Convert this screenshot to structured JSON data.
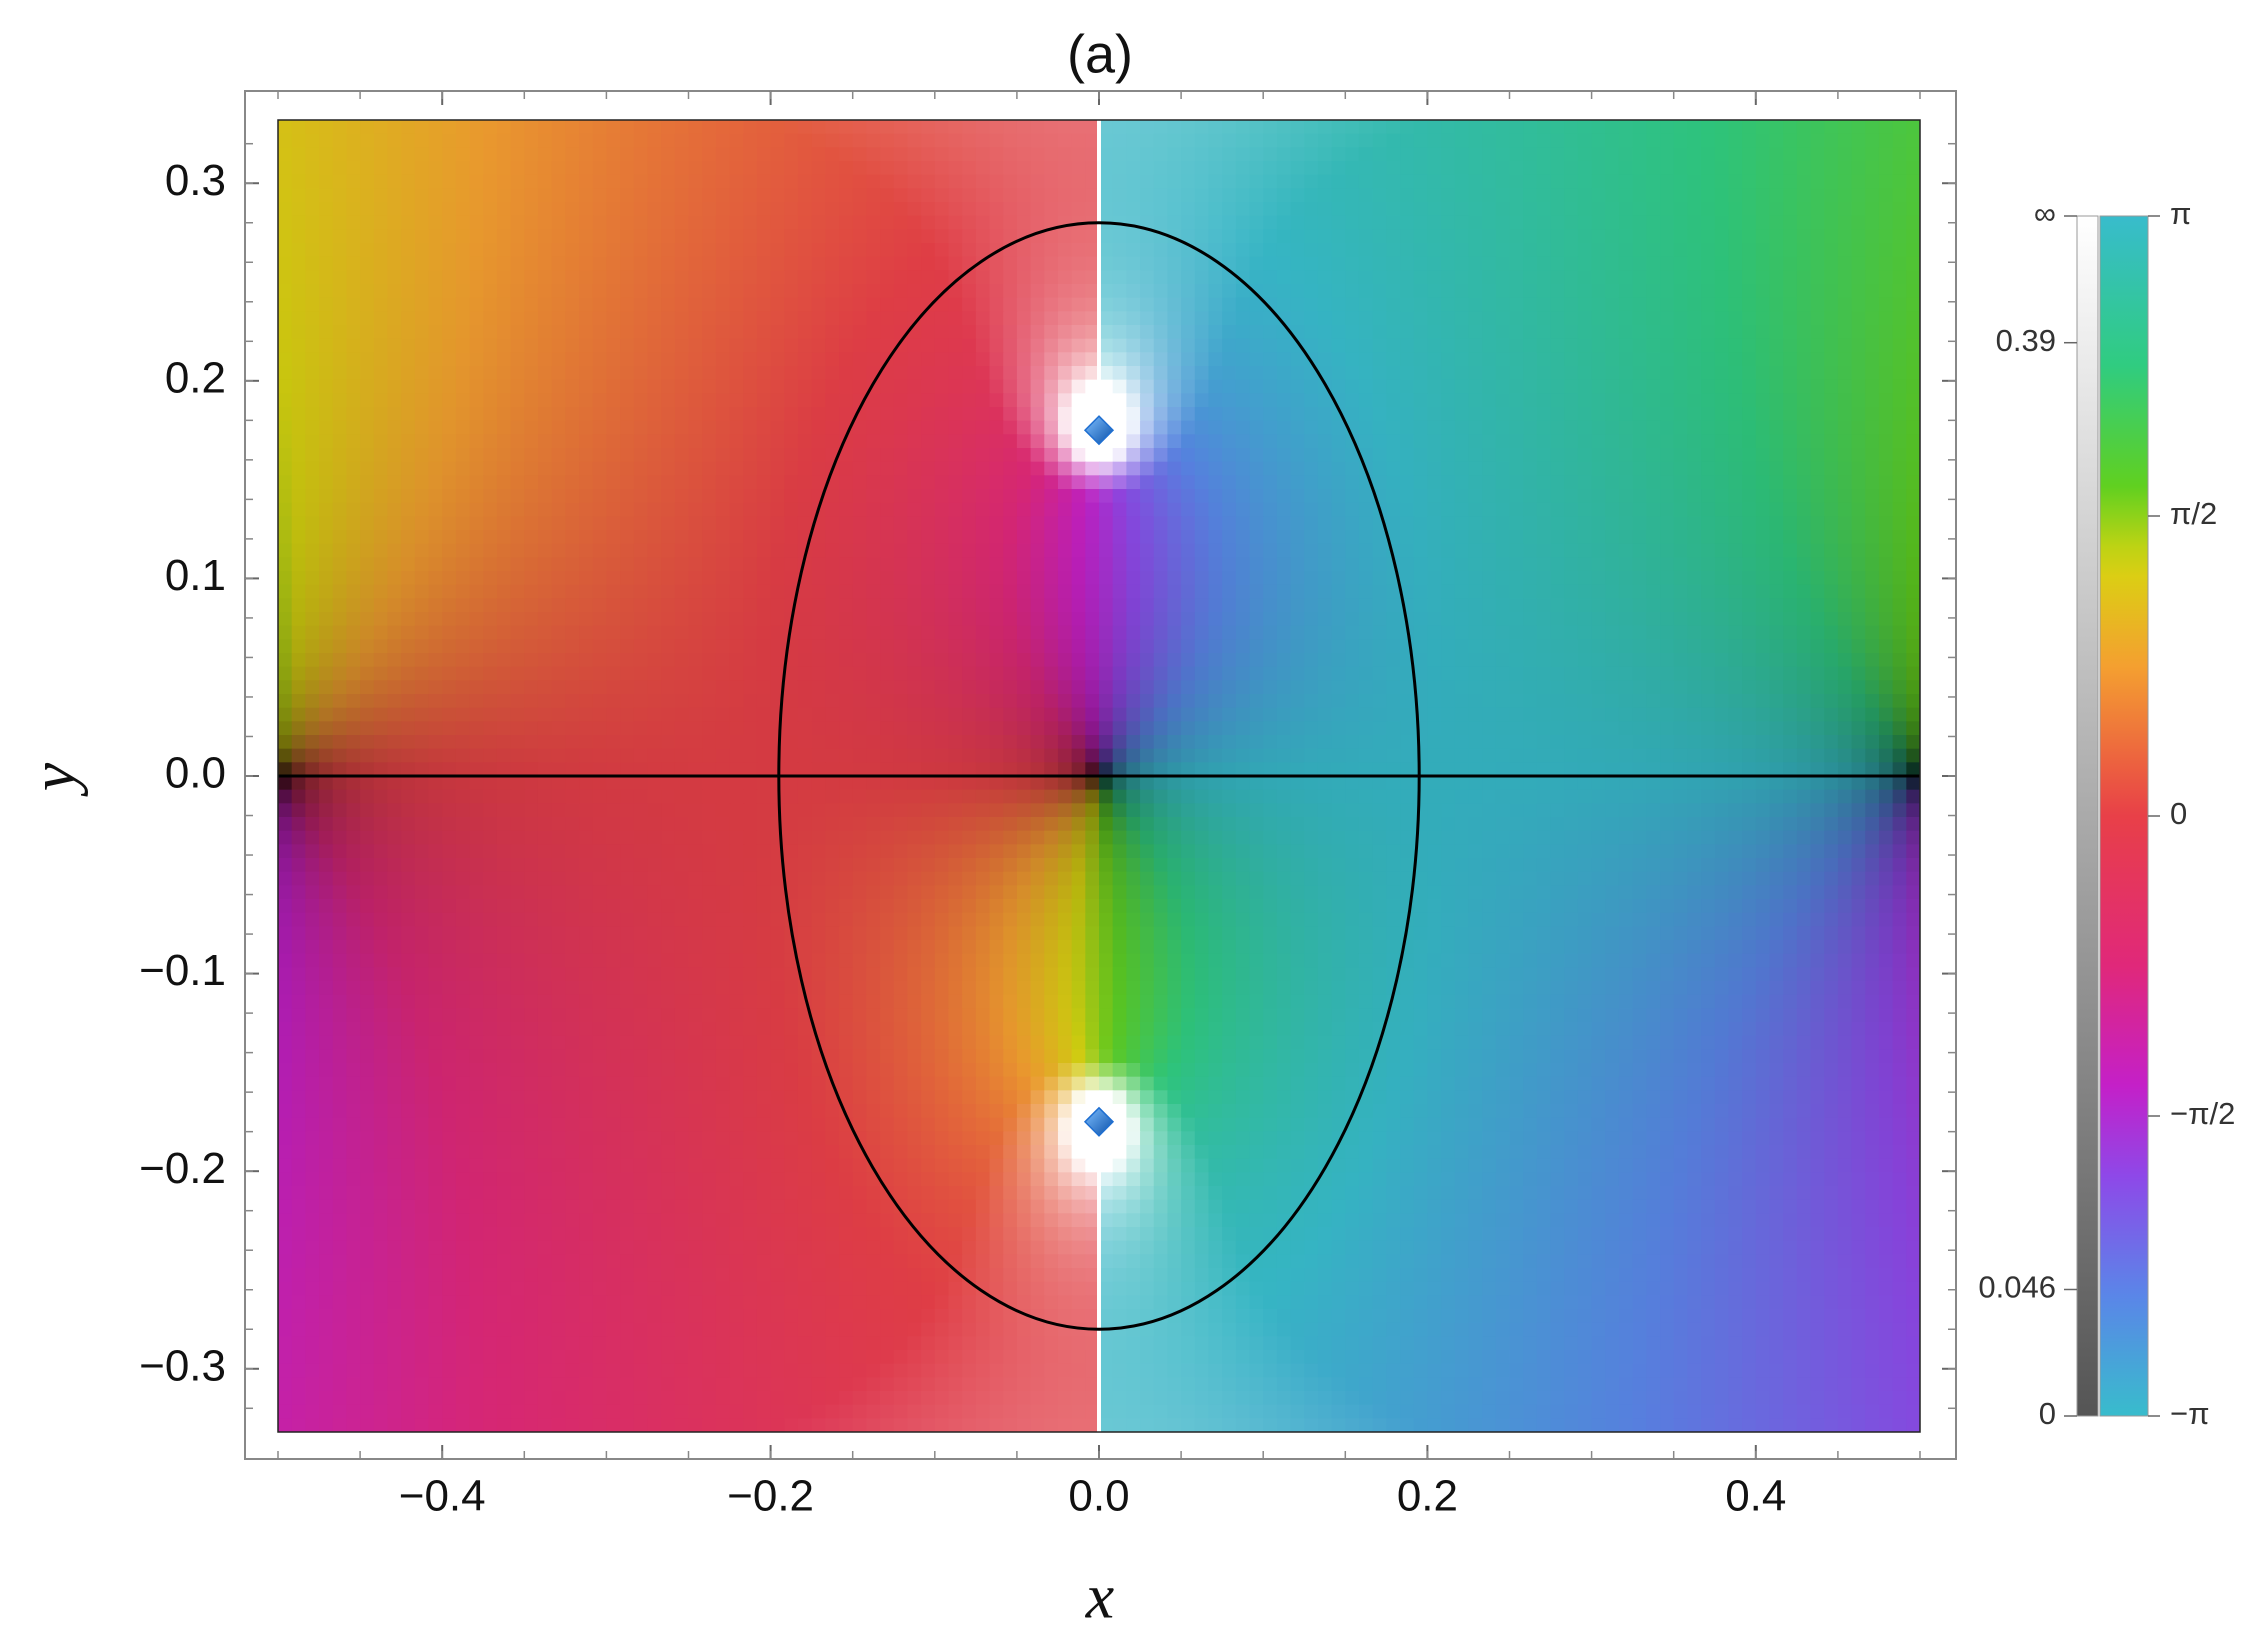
{
  "chart_data": {
    "type": "complex_plot",
    "title": "(a)",
    "xlabel": "x",
    "ylabel": "y",
    "xlim": [
      -0.5,
      0.5
    ],
    "ylim": [
      -0.332,
      0.332
    ],
    "xticks": [
      {
        "value": -0.4,
        "label": "−0.4"
      },
      {
        "value": -0.2,
        "label": "−0.2"
      },
      {
        "value": 0,
        "label": "0.0"
      },
      0.2,
      0.4
    ],
    "yticks": [
      {
        "value": -0.3,
        "label": "−0.3"
      },
      {
        "value": -0.2,
        "label": "−0.2"
      },
      {
        "value": -0.1,
        "label": "−0.1"
      },
      {
        "value": 0,
        "label": "0.0"
      },
      0.1,
      0.2,
      0.3
    ],
    "zeros": [
      -0.5,
      0,
      0.5
    ],
    "points": {
      "x": [
        0,
        0
      ],
      "y": [
        0.175,
        -0.175
      ],
      "color": "#1f6fd1"
    },
    "ellipse": {
      "center_x": 0,
      "center_y": 0,
      "rx": 0.195,
      "ry": 0.28,
      "color": "#000000"
    },
    "hline": 0,
    "colorbar": {
      "phase_lim": [
        -3.141592653589793,
        3.141592653589793
      ],
      "phase_ticks": [
        {
          "value": 3.141592653589793,
          "label": "π"
        },
        {
          "value": 1.5707963267948966,
          "label": "π/2"
        },
        0,
        {
          "value": -1.5707963267948966,
          "label": "−π/2"
        },
        {
          "value": -3.141592653589793,
          "label": "−π"
        }
      ],
      "magnitude_ticks": [
        {
          "label": "∞"
        },
        0.39,
        0.046,
        0
      ]
    }
  }
}
